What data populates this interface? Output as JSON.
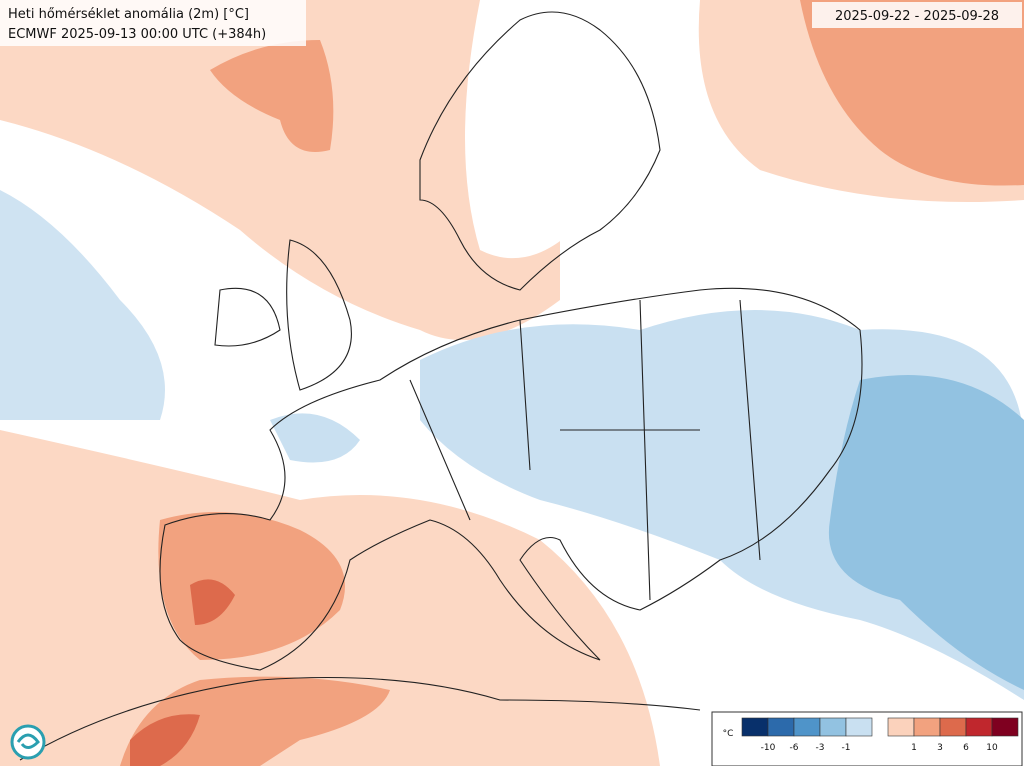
{
  "title": "Heti hőmérséklet anomália (2m) [°C]",
  "subtitle": "ECMWF 2025-09-13 00:00 UTC (+384h)",
  "date_range": "2025-09-22 - 2025-09-28",
  "legend": {
    "unit": "°C",
    "cold_colors": [
      "#08306b",
      "#2c6aab",
      "#4f94c9",
      "#92c2e1",
      "#c9e0f1"
    ],
    "warm_colors": [
      "#fbd2bc",
      "#f2a27f",
      "#dd6a4c",
      "#c0272d",
      "#7f0020"
    ],
    "cold_ticks": [
      -10,
      -6,
      -3,
      -1
    ],
    "warm_ticks": [
      1,
      3,
      6,
      10
    ]
  }
}
